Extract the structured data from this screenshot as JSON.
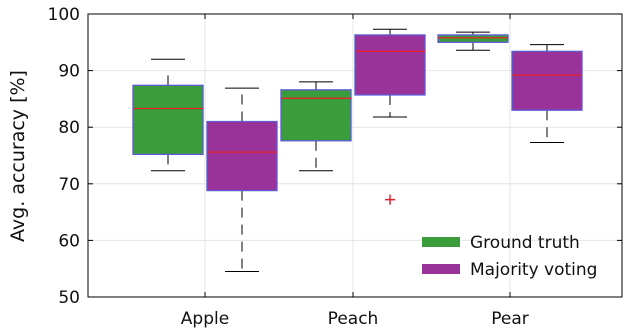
{
  "chart_data": {
    "type": "box",
    "ylabel": "Avg. accuracy [%]",
    "ylim": [
      50,
      100
    ],
    "yticks": [
      50,
      60,
      70,
      80,
      90,
      100
    ],
    "categories": [
      "Apple",
      "Peach",
      "Pear"
    ],
    "grid": true,
    "legend_position": "bottom-right",
    "series": [
      {
        "name": "Ground truth",
        "color": "#3b9c3b",
        "boxes": [
          {
            "category": "Apple",
            "whisker_low": 72.3,
            "q1": 75.2,
            "median": 83.3,
            "q3": 87.4,
            "whisker_high": 90.1,
            "cap_high": 92.0,
            "outliers": []
          },
          {
            "category": "Peach",
            "whisker_low": 72.3,
            "q1": 77.6,
            "median": 85.1,
            "q3": 86.6,
            "whisker_high": 88.0,
            "outliers": []
          },
          {
            "category": "Pear",
            "whisker_low": 93.6,
            "q1": 95.0,
            "median": 95.8,
            "q3": 96.3,
            "whisker_high": 96.8,
            "outliers": []
          }
        ]
      },
      {
        "name": "Majority voting",
        "color": "#993399",
        "boxes": [
          {
            "category": "Apple",
            "whisker_low": 54.5,
            "q1": 68.8,
            "median": 75.6,
            "q3": 81.0,
            "whisker_high": 86.9,
            "outliers": []
          },
          {
            "category": "Peach",
            "whisker_low": 81.8,
            "q1": 85.7,
            "median": 93.4,
            "q3": 96.3,
            "whisker_high": 97.3,
            "outliers": [
              67.2
            ]
          },
          {
            "category": "Pear",
            "whisker_low": 77.3,
            "q1": 83.0,
            "median": 89.2,
            "q3": 93.4,
            "whisker_high": 94.6,
            "outliers": []
          }
        ]
      }
    ]
  },
  "colors": {
    "median_line": "#e8202a",
    "box_border": "#5b5bd6",
    "outlier": "#e8202a",
    "grid": "#e4e4e4",
    "axis": "#000000"
  }
}
